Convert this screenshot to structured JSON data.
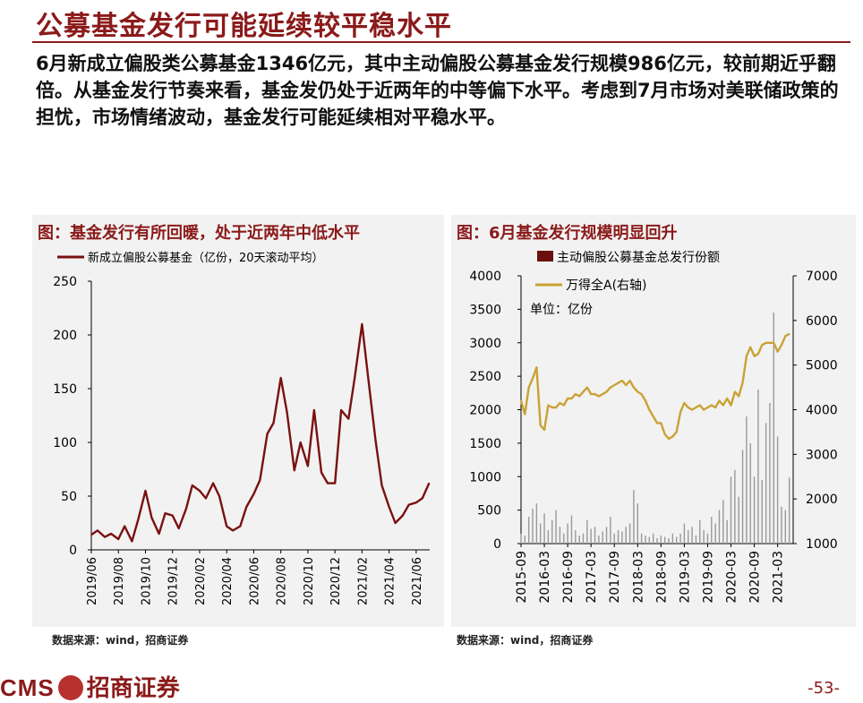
{
  "page": {
    "title": "公募基金发行可能延续较平稳水平",
    "body": "6月新成立偏股类公募基金1346亿元，其中主动偏股公募基金发行规模986亿元，较前期近乎翻倍。从基金发行节奏来看，基金发仍处于近两年的中等偏下水平。考虑到7月市场对美联储政策的担忧，市场情绪波动，基金发行可能延续相对平稳水平。",
    "page_number": "-53-",
    "footer_brand_latin": "CMS",
    "footer_brand_cn": "招商证券"
  },
  "colors": {
    "brand": "#8b1a1a",
    "line_left": "#7a1010",
    "bars_right": "#999999",
    "line_right": "#c9a234",
    "legend_bar": "#6b0f0f"
  },
  "chart_data": [
    {
      "type": "line",
      "title": "图：基金发行有所回暖，处于近两年中低水平",
      "legend": "新成立偏股公募基金（亿份，20天滚动平均）",
      "x_ticks": [
        "2019/06",
        "2019/08",
        "2019/10",
        "2019/12",
        "2020/02",
        "2020/04",
        "2020/06",
        "2020/08",
        "2020/10",
        "2020/12",
        "2021/02",
        "2021/04",
        "2021/06"
      ],
      "ylim": [
        0,
        250
      ],
      "y_ticks": [
        "0",
        "50",
        "100",
        "150",
        "200",
        "250"
      ],
      "grid": false,
      "source": "数据来源：wind，招商证券",
      "series": [
        {
          "name": "新成立偏股公募基金（亿份，20天滚动平均）",
          "x": [
            "2019-06-01",
            "2019-06-15",
            "2019-07-01",
            "2019-07-15",
            "2019-08-01",
            "2019-08-15",
            "2019-09-01",
            "2019-09-15",
            "2019-10-01",
            "2019-10-15",
            "2019-11-01",
            "2019-11-15",
            "2019-12-01",
            "2019-12-15",
            "2020-01-01",
            "2020-01-15",
            "2020-02-01",
            "2020-02-15",
            "2020-03-01",
            "2020-03-15",
            "2020-04-01",
            "2020-04-15",
            "2020-05-01",
            "2020-05-15",
            "2020-06-01",
            "2020-06-15",
            "2020-07-01",
            "2020-07-15",
            "2020-08-01",
            "2020-08-15",
            "2020-09-01",
            "2020-09-15",
            "2020-10-01",
            "2020-10-15",
            "2020-11-01",
            "2020-11-15",
            "2020-12-01",
            "2020-12-15",
            "2021-01-01",
            "2021-01-15",
            "2021-02-01",
            "2021-02-15",
            "2021-03-01",
            "2021-03-15",
            "2021-04-01",
            "2021-04-15",
            "2021-05-01",
            "2021-05-15",
            "2021-06-01",
            "2021-06-15",
            "2021-06-30"
          ],
          "values": [
            14,
            18,
            12,
            15,
            10,
            22,
            8,
            28,
            55,
            30,
            15,
            34,
            32,
            20,
            38,
            60,
            55,
            48,
            62,
            50,
            22,
            18,
            22,
            40,
            52,
            65,
            108,
            118,
            160,
            128,
            74,
            100,
            78,
            130,
            72,
            62,
            62,
            130,
            122,
            160,
            210,
            160,
            102,
            60,
            40,
            25,
            32,
            42,
            44,
            48,
            62
          ]
        }
      ]
    },
    {
      "type": "bar",
      "title": "图：6月基金发行规模明显回升",
      "unit_note": "单位：亿份",
      "source": "数据来源：wind，招商证券",
      "x_ticks": [
        "2015-09",
        "2016-03",
        "2016-09",
        "2017-03",
        "2017-09",
        "2018-03",
        "2018-09",
        "2019-03",
        "2019-09",
        "2020-03",
        "2020-09",
        "2021-03"
      ],
      "ylim": [
        0,
        4000
      ],
      "y_ticks": [
        "0",
        "500",
        "1000",
        "1500",
        "2000",
        "2500",
        "3000",
        "3500",
        "4000"
      ],
      "y2lim": [
        1000,
        7000
      ],
      "y2_ticks": [
        "1000",
        "2000",
        "3000",
        "4000",
        "5000",
        "6000",
        "7000"
      ],
      "grid": false,
      "legend_placement": "top",
      "series": [
        {
          "name": "主动偏股公募基金总发行份额",
          "axis": "left",
          "x": [
            "2015-09",
            "2015-10",
            "2015-11",
            "2015-12",
            "2016-01",
            "2016-02",
            "2016-03",
            "2016-04",
            "2016-05",
            "2016-06",
            "2016-07",
            "2016-08",
            "2016-09",
            "2016-10",
            "2016-11",
            "2016-12",
            "2017-01",
            "2017-02",
            "2017-03",
            "2017-04",
            "2017-05",
            "2017-06",
            "2017-07",
            "2017-08",
            "2017-09",
            "2017-10",
            "2017-11",
            "2017-12",
            "2018-01",
            "2018-02",
            "2018-03",
            "2018-04",
            "2018-05",
            "2018-06",
            "2018-07",
            "2018-08",
            "2018-09",
            "2018-10",
            "2018-11",
            "2018-12",
            "2019-01",
            "2019-02",
            "2019-03",
            "2019-04",
            "2019-05",
            "2019-06",
            "2019-07",
            "2019-08",
            "2019-09",
            "2019-10",
            "2019-11",
            "2019-12",
            "2020-01",
            "2020-02",
            "2020-03",
            "2020-04",
            "2020-05",
            "2020-06",
            "2020-07",
            "2020-08",
            "2020-09",
            "2020-10",
            "2020-11",
            "2020-12",
            "2021-01",
            "2021-02",
            "2021-03",
            "2021-04",
            "2021-05",
            "2021-06"
          ],
          "values": [
            150,
            120,
            400,
            520,
            600,
            300,
            450,
            200,
            350,
            500,
            250,
            150,
            300,
            420,
            200,
            120,
            150,
            350,
            220,
            250,
            120,
            180,
            250,
            400,
            150,
            200,
            180,
            250,
            300,
            800,
            600,
            150,
            120,
            100,
            150,
            80,
            120,
            100,
            80,
            150,
            100,
            150,
            300,
            200,
            250,
            120,
            350,
            200,
            150,
            400,
            300,
            500,
            650,
            350,
            1000,
            1100,
            700,
            1400,
            1900,
            1500,
            1000,
            2300,
            950,
            1800,
            2100,
            3450,
            1600,
            550,
            500,
            986
          ]
        },
        {
          "name": "万得全A(右轴)",
          "axis": "right",
          "x": [
            "2015-09",
            "2015-10",
            "2015-11",
            "2015-12",
            "2016-01",
            "2016-02",
            "2016-03",
            "2016-04",
            "2016-05",
            "2016-06",
            "2016-07",
            "2016-08",
            "2016-09",
            "2016-10",
            "2016-11",
            "2016-12",
            "2017-01",
            "2017-02",
            "2017-03",
            "2017-04",
            "2017-05",
            "2017-06",
            "2017-07",
            "2017-08",
            "2017-09",
            "2017-10",
            "2017-11",
            "2017-12",
            "2018-01",
            "2018-02",
            "2018-03",
            "2018-04",
            "2018-05",
            "2018-06",
            "2018-07",
            "2018-08",
            "2018-09",
            "2018-10",
            "2018-11",
            "2018-12",
            "2019-01",
            "2019-02",
            "2019-03",
            "2019-04",
            "2019-05",
            "2019-06",
            "2019-07",
            "2019-08",
            "2019-09",
            "2019-10",
            "2019-11",
            "2019-12",
            "2020-01",
            "2020-02",
            "2020-03",
            "2020-04",
            "2020-05",
            "2020-06",
            "2020-07",
            "2020-08",
            "2020-09",
            "2020-10",
            "2020-11",
            "2020-12",
            "2021-01",
            "2021-02",
            "2021-03",
            "2021-04",
            "2021-05",
            "2021-06"
          ],
          "values": [
            4200,
            3900,
            4500,
            4700,
            4950,
            3650,
            3550,
            4100,
            4050,
            4050,
            4150,
            4100,
            4250,
            4250,
            4350,
            4300,
            4400,
            4500,
            4350,
            4350,
            4300,
            4350,
            4400,
            4500,
            4550,
            4600,
            4650,
            4550,
            4650,
            4500,
            4400,
            4350,
            4200,
            4000,
            3850,
            3700,
            3700,
            3450,
            3350,
            3400,
            3500,
            3950,
            4150,
            4050,
            4000,
            4050,
            4100,
            4000,
            4050,
            4100,
            4050,
            4200,
            4100,
            4250,
            4100,
            4400,
            4300,
            4600,
            5200,
            5400,
            5200,
            5250,
            5450,
            5500,
            5500,
            5500,
            5300,
            5450,
            5650,
            5700
          ]
        }
      ]
    }
  ]
}
